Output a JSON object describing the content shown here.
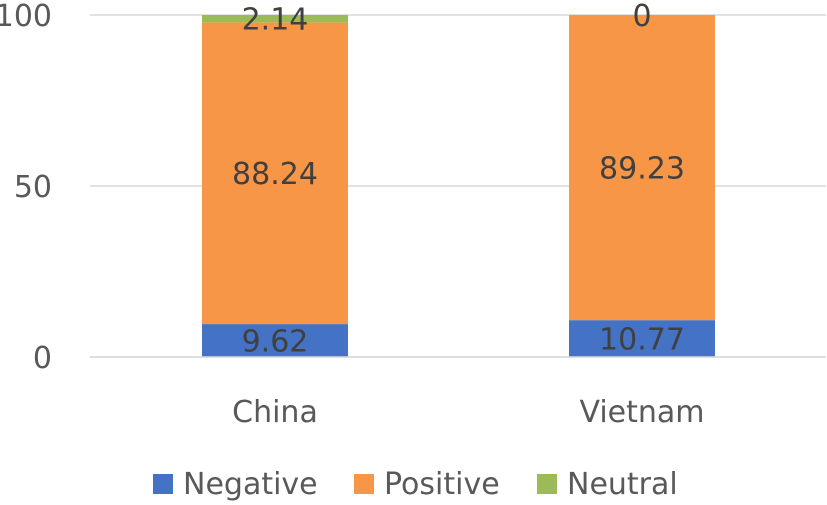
{
  "chart_data": {
    "type": "bar",
    "stacked": true,
    "categories": [
      "China",
      "Vietnam"
    ],
    "series": [
      {
        "name": "Negative",
        "color": "#4472c4",
        "values": [
          9.62,
          10.77
        ]
      },
      {
        "name": "Positive",
        "color": "#f79646",
        "values": [
          88.24,
          89.23
        ]
      },
      {
        "name": "Neutral",
        "color": "#9bbb59",
        "values": [
          2.14,
          0
        ]
      }
    ],
    "title": "",
    "xlabel": "",
    "ylabel": "",
    "ylim": [
      0,
      100
    ],
    "yticks": [
      0,
      50,
      100
    ],
    "grid": true,
    "legend": "bottom"
  }
}
